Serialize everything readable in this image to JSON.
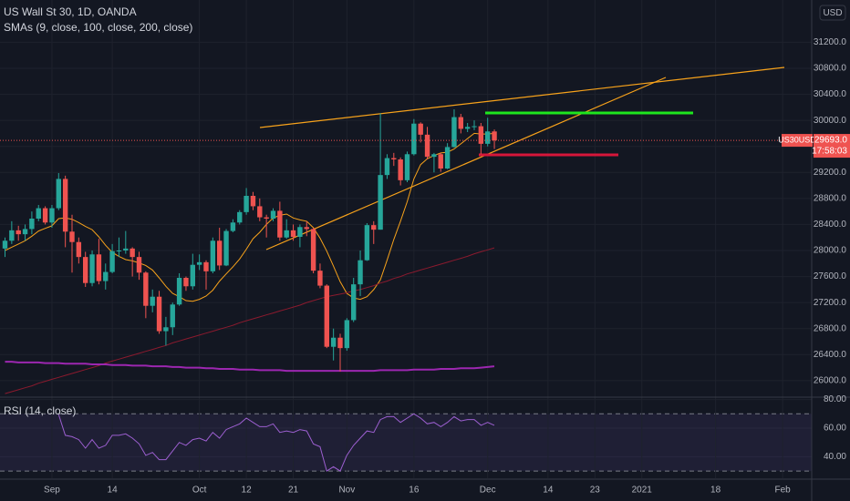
{
  "chart_data": {
    "type": "candlestick",
    "title": "US Wall St 30, 1D, OANDA",
    "currency": "USD",
    "categories": [
      null,
      null,
      null,
      null,
      null,
      null,
      null,
      "Sep",
      null,
      null,
      null,
      null,
      null,
      null,
      null,
      null,
      "14",
      null,
      null,
      null,
      null,
      null,
      null,
      null,
      null,
      null,
      null,
      null,
      null,
      "Oct",
      null,
      null,
      null,
      null,
      null,
      null,
      "12",
      null,
      null,
      null,
      null,
      null,
      null,
      "21",
      null,
      null,
      null,
      null,
      null,
      null,
      null,
      "Nov",
      null,
      null,
      null,
      null,
      null,
      null,
      null,
      null,
      null,
      "16",
      null,
      null,
      null,
      null,
      null,
      null,
      null,
      null,
      null,
      null,
      "Dec",
      null,
      null,
      null,
      null,
      null,
      null,
      null,
      null,
      "14",
      null,
      null,
      null,
      null,
      null,
      null,
      "23",
      null,
      null,
      null,
      null,
      null,
      null,
      "2021",
      null,
      null,
      null,
      null,
      null,
      null,
      null,
      null,
      null,
      null,
      "18",
      null,
      null,
      null,
      null,
      null,
      null,
      null,
      null,
      null,
      "Feb",
      null,
      null,
      null,
      null
    ],
    "open": [
      28030,
      28150,
      28310,
      28250,
      28330,
      28490,
      28650,
      28430,
      28650,
      29100,
      28290,
      28130,
      27900,
      27500,
      27940,
      27530,
      27670,
      27990,
      28000,
      28030,
      27900,
      27660,
      27150,
      27290,
      26760,
      26820,
      27170,
      27580,
      27450,
      27780,
      27820,
      27680,
      28150,
      27770,
      28300,
      28430,
      28590,
      28840,
      28680,
      28510,
      28490,
      28610,
      28200,
      28310,
      28210,
      28360,
      28330,
      27690,
      27460,
      26520,
      26660,
      26500,
      26930,
      27480,
      27850,
      28390,
      28320,
      29160,
      29420,
      29400,
      29080,
      29480,
      29950,
      29780,
      29440,
      29480,
      29260,
      29590,
      30050,
      29870,
      29900,
      29910,
      29640,
      29830,
      null,
      null,
      null,
      null,
      null,
      null,
      null,
      null,
      null,
      null,
      null,
      null,
      null,
      null,
      null,
      null,
      null,
      null,
      null,
      null,
      null,
      null,
      null,
      null,
      null,
      null,
      null,
      null,
      null,
      null,
      null,
      null,
      null,
      null,
      null,
      null,
      null,
      null,
      null,
      null,
      null,
      null,
      null,
      null,
      null,
      null,
      null
    ],
    "high": [
      28200,
      28450,
      28380,
      28400,
      28600,
      28700,
      28680,
      28700,
      29190,
      29150,
      28550,
      28200,
      27980,
      28000,
      28180,
      27800,
      28100,
      28200,
      28300,
      28050,
      27980,
      27680,
      27400,
      27380,
      26980,
      27200,
      27650,
      27600,
      27950,
      27940,
      27850,
      28200,
      28350,
      28330,
      28480,
      28620,
      28960,
      28900,
      28800,
      28550,
      28650,
      28750,
      28480,
      28400,
      28400,
      28450,
      28350,
      27800,
      27480,
      26800,
      26720,
      26960,
      27580,
      28000,
      28420,
      28450,
      30110,
      29480,
      29500,
      29430,
      29520,
      30020,
      29970,
      29900,
      29500,
      29500,
      29650,
      30170,
      30100,
      29960,
      30000,
      29960,
      30040,
      29860,
      null,
      null,
      null,
      null,
      null,
      null,
      null,
      null,
      null,
      null,
      null,
      null,
      null,
      null,
      null,
      null,
      null,
      null,
      null,
      null,
      null,
      null,
      null,
      null,
      null,
      null,
      null,
      null,
      null,
      null,
      null,
      null,
      null,
      null,
      null,
      null,
      null,
      null,
      null,
      null,
      null,
      null,
      null,
      null,
      null,
      null,
      null
    ],
    "low": [
      27900,
      28100,
      28150,
      28150,
      28250,
      28450,
      28400,
      28350,
      28620,
      28050,
      27660,
      27800,
      27440,
      27450,
      27480,
      27400,
      27650,
      27900,
      27950,
      27600,
      27550,
      26960,
      27050,
      26720,
      26540,
      26700,
      27150,
      27380,
      27400,
      27700,
      27400,
      27650,
      27700,
      27760,
      28280,
      28400,
      28550,
      28620,
      28450,
      28200,
      28450,
      28150,
      28180,
      28150,
      28050,
      28220,
      27650,
      27420,
      26500,
      26310,
      26140,
      26460,
      26900,
      27300,
      27840,
      28100,
      28320,
      29100,
      29300,
      29000,
      29050,
      29460,
      29660,
      29400,
      29200,
      29210,
      29250,
      29580,
      29800,
      29820,
      29850,
      29480,
      29600,
      29560,
      null,
      null,
      null,
      null,
      null,
      null,
      null,
      null,
      null,
      null,
      null,
      null,
      null,
      null,
      null,
      null,
      null,
      null,
      null,
      null,
      null,
      null,
      null,
      null,
      null,
      null,
      null,
      null,
      null,
      null,
      null,
      null,
      null,
      null,
      null,
      null,
      null,
      null,
      null,
      null,
      null,
      null,
      null,
      null,
      null,
      null,
      null
    ],
    "close": [
      28150,
      28310,
      28250,
      28330,
      28490,
      28650,
      28430,
      28650,
      29100,
      28290,
      28130,
      27900,
      27500,
      27940,
      27530,
      27670,
      27990,
      28000,
      28030,
      27900,
      27660,
      27150,
      27290,
      26760,
      26820,
      27170,
      27580,
      27450,
      27780,
      27820,
      27680,
      28150,
      27770,
      28300,
      28430,
      28590,
      28840,
      28680,
      28510,
      28490,
      28610,
      28200,
      28310,
      28210,
      28360,
      28330,
      27690,
      27460,
      26520,
      26660,
      26500,
      26930,
      27480,
      27850,
      28390,
      28320,
      29160,
      29420,
      29400,
      29080,
      29480,
      29950,
      29780,
      29440,
      29480,
      29260,
      29590,
      30050,
      29870,
      29900,
      29910,
      29640,
      29830,
      29693,
      null,
      null,
      null,
      null,
      null,
      null,
      null,
      null,
      null,
      null,
      null,
      null,
      null,
      null,
      null,
      null,
      null,
      null,
      null,
      null,
      null,
      null,
      null,
      null,
      null,
      null,
      null,
      null,
      null,
      null,
      null,
      null,
      null,
      null,
      null,
      null,
      null,
      null,
      null,
      null,
      null,
      null,
      null,
      null,
      null,
      null,
      null
    ],
    "up_color": "#26a69a",
    "down_color": "#ef5350",
    "ylim": [
      25760,
      31850
    ],
    "yticks": [
      {
        "value": 26000,
        "label": "26000.0"
      },
      {
        "value": 26400,
        "label": "26400.0"
      },
      {
        "value": 26800,
        "label": "26800.0"
      },
      {
        "value": 27200,
        "label": "27200.0"
      },
      {
        "value": 27600,
        "label": "27600.0"
      },
      {
        "value": 28000,
        "label": "28000.0"
      },
      {
        "value": 28400,
        "label": "28400.0"
      },
      {
        "value": 28800,
        "label": "28800.0"
      },
      {
        "value": 29200,
        "label": "29200.0"
      },
      {
        "value": 29600,
        "label": "29600.0"
      },
      {
        "value": 30000,
        "label": "30000.0"
      },
      {
        "value": 30400,
        "label": "30400.0"
      },
      {
        "value": 30800,
        "label": "30800.0"
      },
      {
        "value": 31200,
        "label": "31200.0"
      }
    ],
    "grid": true,
    "last_price": {
      "symbol": "US30USD",
      "value": 29693,
      "label": "29693.0",
      "countdown": "17:58:03"
    },
    "overlays": {
      "name": "SMAs (9, close, 100, close, 200, close)",
      "series": [
        {
          "color": "#f7a21b",
          "values": [
            28000,
            28050,
            28100,
            28150,
            28220,
            28300,
            28340,
            28380,
            28490,
            28500,
            28480,
            28430,
            28370,
            28320,
            28210,
            28080,
            27970,
            27910,
            27860,
            27840,
            27810,
            27770,
            27700,
            27580,
            27450,
            27340,
            27290,
            27230,
            27220,
            27250,
            27300,
            27390,
            27530,
            27640,
            27750,
            27870,
            28020,
            28180,
            28280,
            28400,
            28500,
            28540,
            28560,
            28500,
            28470,
            28450,
            28350,
            28190,
            27990,
            27760,
            27520,
            27340,
            27270,
            27250,
            27290,
            27400,
            27550,
            27850,
            28170,
            28450,
            28750,
            29100,
            29320,
            29410,
            29460,
            29500,
            29510,
            29560,
            29640,
            29720,
            29800,
            29790,
            29790,
            29800,
            null,
            null,
            null,
            null,
            null,
            null,
            null,
            null,
            null,
            null,
            null,
            null,
            null,
            null,
            null,
            null,
            null,
            null,
            null,
            null,
            null,
            null,
            null,
            null,
            null,
            null,
            null,
            null,
            null,
            null,
            null,
            null,
            null,
            null,
            null,
            null,
            null,
            null,
            null,
            null,
            null,
            null,
            null,
            null,
            null,
            null,
            null
          ]
        },
        {
          "color": "#8b1a2e",
          "values": [
            25800,
            25830,
            25860,
            25890,
            25920,
            25960,
            25990,
            26020,
            26050,
            26080,
            26110,
            26140,
            26170,
            26200,
            26230,
            26270,
            26300,
            26330,
            26360,
            26390,
            26420,
            26450,
            26480,
            26510,
            26540,
            26580,
            26610,
            26640,
            26670,
            26700,
            26730,
            26760,
            26790,
            26820,
            26850,
            26890,
            26920,
            26950,
            26980,
            27010,
            27040,
            27070,
            27100,
            27130,
            27160,
            27200,
            27230,
            27260,
            27290,
            27310,
            27330,
            27350,
            27380,
            27400,
            27430,
            27460,
            27500,
            27530,
            27570,
            27600,
            27640,
            27670,
            27700,
            27730,
            27760,
            27790,
            27820,
            27850,
            27880,
            27910,
            27950,
            27980,
            28010,
            28040,
            null,
            null,
            null,
            null,
            null,
            null,
            null,
            null,
            null,
            null,
            null,
            null,
            null,
            null,
            null,
            null,
            null,
            null,
            null,
            null,
            null,
            null,
            null,
            null,
            null,
            null,
            null,
            null,
            null,
            null,
            null,
            null,
            null,
            null,
            null,
            null,
            null,
            null,
            null,
            null,
            null,
            null,
            null,
            null,
            null,
            null,
            null
          ]
        },
        {
          "color": "#9c27b0",
          "values": [
            26290,
            26290,
            26280,
            26280,
            26280,
            26280,
            26270,
            26270,
            26270,
            26260,
            26260,
            26260,
            26260,
            26250,
            26250,
            26250,
            26240,
            26240,
            26240,
            26230,
            26230,
            26230,
            26220,
            26220,
            26220,
            26210,
            26210,
            26200,
            26200,
            26200,
            26190,
            26190,
            26180,
            26180,
            26180,
            26170,
            26170,
            26170,
            26160,
            26160,
            26160,
            26160,
            26150,
            26150,
            26150,
            26150,
            26150,
            26150,
            26150,
            26150,
            26150,
            26150,
            26150,
            26150,
            26150,
            26150,
            26160,
            26160,
            26160,
            26160,
            26160,
            26170,
            26170,
            26170,
            26170,
            26180,
            26180,
            26180,
            26190,
            26190,
            26190,
            26200,
            26210,
            26220,
            null,
            null,
            null,
            null,
            null,
            null,
            null,
            null,
            null,
            null,
            null,
            null,
            null,
            null,
            null,
            null,
            null,
            null,
            null,
            null,
            null,
            null,
            null,
            null,
            null,
            null,
            null,
            null,
            null,
            null,
            null,
            null,
            null,
            null,
            null,
            null,
            null,
            null,
            null,
            null,
            null,
            null,
            null,
            null,
            null,
            null,
            null
          ]
        }
      ]
    },
    "rsi": {
      "name": "RSI (14, close)",
      "color": "#9c5fd0",
      "ylim": [
        25,
        81
      ],
      "bands": [
        30,
        70
      ],
      "yticks": [
        {
          "value": 40,
          "label": "40.00"
        },
        {
          "value": 60,
          "label": "60.00"
        },
        {
          "value": 80,
          "label": "80.00"
        }
      ],
      "values": [
        null,
        null,
        null,
        null,
        null,
        null,
        null,
        null,
        69.5,
        55,
        54,
        52,
        46,
        52,
        46,
        48,
        55,
        55,
        56,
        53,
        49,
        41,
        43,
        38,
        38,
        44,
        50,
        48,
        52,
        53,
        51,
        57,
        53,
        59,
        61,
        63,
        67,
        64,
        61,
        61,
        63,
        57,
        58,
        57,
        59,
        58,
        49,
        47,
        30,
        33,
        30,
        41,
        48,
        53,
        58,
        57,
        66,
        68,
        68,
        64,
        67,
        70,
        67,
        63,
        64,
        61,
        64,
        68,
        65,
        66,
        66,
        62,
        64,
        62,
        null,
        null,
        null,
        null,
        null,
        null,
        null,
        null,
        null,
        null,
        null,
        null,
        null,
        null,
        null,
        null,
        null,
        null,
        null,
        null,
        null,
        null,
        null,
        null,
        null,
        null,
        null,
        null,
        null,
        null,
        null,
        null,
        null,
        null,
        null,
        null,
        null,
        null,
        null,
        null,
        null,
        null,
        null,
        null,
        null,
        null,
        null
      ]
    }
  }
}
